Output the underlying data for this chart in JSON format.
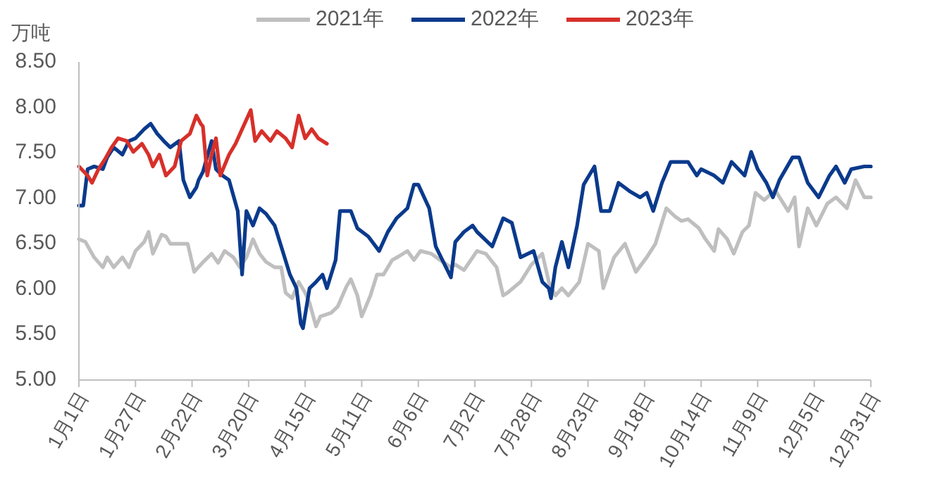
{
  "chart_data": {
    "type": "line",
    "ylabel": "万吨",
    "xlim": [
      "--01-01",
      "--12-31"
    ],
    "ylim": [
      5,
      8.5
    ],
    "yticks": [
      {
        "value": 5,
        "label": "5.00"
      },
      {
        "value": 5.5,
        "label": "5.50"
      },
      {
        "value": 6,
        "label": "6.00"
      },
      {
        "value": 6.5,
        "label": "6.50"
      },
      {
        "value": 7,
        "label": "7.00"
      },
      {
        "value": 7.5,
        "label": "7.50"
      },
      {
        "value": 8,
        "label": "8.00"
      },
      {
        "value": 8.5,
        "label": "8.50"
      }
    ],
    "xticks": [
      {
        "value": "--01-01",
        "label": "1月1日"
      },
      {
        "value": "--01-27",
        "label": "1月27日"
      },
      {
        "value": "--02-22",
        "label": "2月22日"
      },
      {
        "value": "--03-20",
        "label": "3月20日"
      },
      {
        "value": "--04-15",
        "label": "4月15日"
      },
      {
        "value": "--05-11",
        "label": "5月11日"
      },
      {
        "value": "--06-06",
        "label": "6月6日"
      },
      {
        "value": "--07-02",
        "label": "7月2日"
      },
      {
        "value": "--07-28",
        "label": "7月28日"
      },
      {
        "value": "--08-23",
        "label": "8月23日"
      },
      {
        "value": "--09-18",
        "label": "9月18日"
      },
      {
        "value": "--10-14",
        "label": "10月14日"
      },
      {
        "value": "--11-09",
        "label": "11月9日"
      },
      {
        "value": "--12-05",
        "label": "12月5日"
      },
      {
        "value": "--12-31",
        "label": "12月31日"
      }
    ],
    "grid": false,
    "legend": "top",
    "marker": "none",
    "line_style": "solid",
    "series": [
      {
        "name": "2021年",
        "color": "#bfbfbf",
        "x": [
          "--01-01",
          "--01-04",
          "--01-08",
          "--01-12",
          "--01-14",
          "--01-17",
          "--01-21",
          "--01-24",
          "--01-27",
          "--01-31",
          "--02-02",
          "--02-04",
          "--02-08",
          "--02-10",
          "--02-12",
          "--02-17",
          "--02-20",
          "--02-23",
          "--02-26",
          "--02-28",
          "--03-03",
          "--03-06",
          "--03-09",
          "--03-13",
          "--03-16",
          "--03-19",
          "--03-22",
          "--03-25",
          "--03-28",
          "--04-01",
          "--04-04",
          "--04-06",
          "--04-09",
          "--04-12",
          "--04-15",
          "--04-17",
          "--04-20",
          "--04-22",
          "--04-27",
          "--04-30",
          "--05-04",
          "--05-06",
          "--05-09",
          "--05-11",
          "--05-15",
          "--05-18",
          "--05-21",
          "--05-25",
          "--05-28",
          "--06-01",
          "--06-04",
          "--06-07",
          "--06-12",
          "--06-16",
          "--06-21",
          "--06-23",
          "--06-27",
          "--07-03",
          "--07-07",
          "--07-12",
          "--07-15",
          "--07-17",
          "--07-23",
          "--07-28",
          "--08-02",
          "--08-05",
          "--08-08",
          "--08-11",
          "--08-14",
          "--08-19",
          "--08-23",
          "--08-28",
          "--08-30",
          "--09-04",
          "--09-09",
          "--09-14",
          "--09-19",
          "--09-23",
          "--09-28",
          "--10-02",
          "--10-05",
          "--10-08",
          "--10-13",
          "--10-16",
          "--10-20",
          "--10-22",
          "--10-26",
          "--10-29",
          "--11-02",
          "--11-05",
          "--11-08",
          "--11-12",
          "--11-17",
          "--11-23",
          "--11-26",
          "--11-28",
          "--12-02",
          "--12-06",
          "--12-11",
          "--12-15",
          "--12-20",
          "--12-24",
          "--12-28",
          "--12-31"
        ],
        "values": [
          6.55,
          6.52,
          6.35,
          6.24,
          6.35,
          6.24,
          6.35,
          6.24,
          6.42,
          6.52,
          6.63,
          6.39,
          6.6,
          6.58,
          6.5,
          6.5,
          6.5,
          6.19,
          6.27,
          6.32,
          6.39,
          6.29,
          6.42,
          6.35,
          6.24,
          6.35,
          6.55,
          6.39,
          6.3,
          6.24,
          6.24,
          5.96,
          5.9,
          6.08,
          5.96,
          5.85,
          5.59,
          5.7,
          5.74,
          5.81,
          6.03,
          6.11,
          5.93,
          5.7,
          5.93,
          6.16,
          6.16,
          6.32,
          6.36,
          6.42,
          6.32,
          6.42,
          6.39,
          6.32,
          6.24,
          6.27,
          6.21,
          6.42,
          6.39,
          6.24,
          5.93,
          5.96,
          6.08,
          6.27,
          6.39,
          6.08,
          5.93,
          6.01,
          5.93,
          6.08,
          6.5,
          6.42,
          6.01,
          6.35,
          6.5,
          6.19,
          6.35,
          6.5,
          6.89,
          6.8,
          6.75,
          6.77,
          6.67,
          6.55,
          6.42,
          6.66,
          6.55,
          6.39,
          6.63,
          6.7,
          7.06,
          6.98,
          7.09,
          6.86,
          7.01,
          6.47,
          6.89,
          6.7,
          6.94,
          7.01,
          6.89,
          7.2,
          7.01,
          7.01
        ]
      },
      {
        "name": "2022年",
        "color": "#0a3a8c",
        "x": [
          "--01-01",
          "--01-03",
          "--01-05",
          "--01-08",
          "--01-12",
          "--01-14",
          "--01-17",
          "--01-21",
          "--01-24",
          "--01-27",
          "--01-31",
          "--02-03",
          "--02-06",
          "--02-09",
          "--02-12",
          "--02-16",
          "--02-18",
          "--02-21",
          "--02-24",
          "--02-25",
          "--02-27",
          "--03-03",
          "--03-05",
          "--03-08",
          "--03-11",
          "--03-15",
          "--03-17",
          "--03-19",
          "--03-22",
          "--03-25",
          "--03-28",
          "--04-01",
          "--04-04",
          "--04-08",
          "--04-11",
          "--04-13",
          "--04-14",
          "--04-17",
          "--04-20",
          "--04-23",
          "--04-25",
          "--04-29",
          "--05-01",
          "--05-06",
          "--05-09",
          "--05-14",
          "--05-19",
          "--05-23",
          "--05-27",
          "--06-01",
          "--06-04",
          "--06-06",
          "--06-11",
          "--06-14",
          "--06-21",
          "--06-23",
          "--06-27",
          "--07-01",
          "--07-03",
          "--07-10",
          "--07-15",
          "--07-19",
          "--07-23",
          "--07-29",
          "--08-02",
          "--08-05",
          "--08-06",
          "--08-08",
          "--08-11",
          "--08-14",
          "--08-18",
          "--08-21",
          "--08-26",
          "--08-29",
          "--09-02",
          "--09-06",
          "--09-11",
          "--09-16",
          "--09-19",
          "--09-22",
          "--09-26",
          "--09-30",
          "--10-08",
          "--10-12",
          "--10-14",
          "--10-20",
          "--10-24",
          "--10-28",
          "--11-03",
          "--11-06",
          "--11-09",
          "--11-13",
          "--11-16",
          "--11-19",
          "--11-25",
          "--11-28",
          "--12-02",
          "--12-07",
          "--12-12",
          "--12-15",
          "--12-19",
          "--12-22",
          "--12-28",
          "--12-31"
        ],
        "values": [
          6.92,
          6.92,
          7.32,
          7.35,
          7.32,
          7.45,
          7.56,
          7.48,
          7.63,
          7.66,
          7.76,
          7.82,
          7.71,
          7.63,
          7.56,
          7.63,
          7.2,
          7.01,
          7.12,
          7.2,
          7.29,
          7.63,
          7.32,
          7.25,
          7.2,
          6.86,
          6.16,
          6.86,
          6.7,
          6.89,
          6.83,
          6.7,
          6.47,
          6.16,
          6.01,
          5.62,
          5.57,
          6.01,
          6.08,
          6.16,
          6.01,
          6.32,
          6.86,
          6.86,
          6.67,
          6.58,
          6.42,
          6.63,
          6.78,
          6.89,
          7.15,
          7.15,
          6.89,
          6.47,
          6.13,
          6.52,
          6.63,
          6.7,
          6.63,
          6.47,
          6.78,
          6.73,
          6.35,
          6.42,
          6.08,
          6.01,
          5.9,
          6.24,
          6.52,
          6.24,
          6.7,
          7.15,
          7.35,
          6.86,
          6.86,
          7.17,
          7.08,
          7.01,
          7.06,
          6.86,
          7.17,
          7.4,
          7.4,
          7.25,
          7.32,
          7.25,
          7.17,
          7.4,
          7.25,
          7.51,
          7.32,
          7.17,
          7.01,
          7.2,
          7.45,
          7.45,
          7.17,
          7.01,
          7.25,
          7.35,
          7.17,
          7.32,
          7.35,
          7.35
        ]
      },
      {
        "name": "2023年",
        "color": "#d7302a",
        "x": [
          "--01-01",
          "--01-05",
          "--01-07",
          "--01-10",
          "--01-13",
          "--01-16",
          "--01-19",
          "--01-23",
          "--01-26",
          "--01-30",
          "--02-02",
          "--02-04",
          "--02-07",
          "--02-10",
          "--02-14",
          "--02-17",
          "--02-21",
          "--02-24",
          "--02-26",
          "--02-27",
          "--03-01",
          "--03-03",
          "--03-05",
          "--03-07",
          "--03-11",
          "--03-14",
          "--03-17",
          "--03-21",
          "--03-23",
          "--03-26",
          "--03-30",
          "--04-02",
          "--04-06",
          "--04-09",
          "--04-12",
          "--04-15",
          "--04-18",
          "--04-21",
          "--04-25"
        ],
        "values": [
          7.35,
          7.25,
          7.17,
          7.32,
          7.43,
          7.56,
          7.66,
          7.63,
          7.51,
          7.6,
          7.48,
          7.35,
          7.48,
          7.25,
          7.35,
          7.63,
          7.71,
          7.91,
          7.82,
          7.79,
          7.25,
          7.48,
          7.66,
          7.25,
          7.48,
          7.6,
          7.76,
          7.97,
          7.63,
          7.74,
          7.63,
          7.74,
          7.66,
          7.56,
          7.91,
          7.66,
          7.76,
          7.66,
          7.6
        ]
      }
    ]
  }
}
